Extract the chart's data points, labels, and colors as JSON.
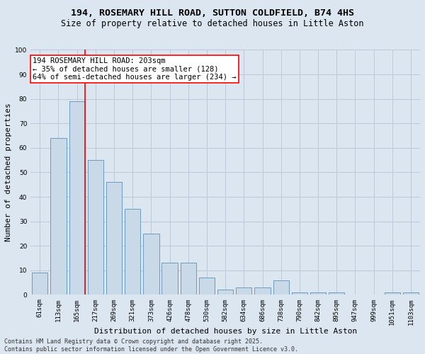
{
  "title1": "194, ROSEMARY HILL ROAD, SUTTON COLDFIELD, B74 4HS",
  "title2": "Size of property relative to detached houses in Little Aston",
  "xlabel": "Distribution of detached houses by size in Little Aston",
  "ylabel": "Number of detached properties",
  "categories": [
    "61sqm",
    "113sqm",
    "165sqm",
    "217sqm",
    "269sqm",
    "321sqm",
    "373sqm",
    "426sqm",
    "478sqm",
    "530sqm",
    "582sqm",
    "634sqm",
    "686sqm",
    "738sqm",
    "790sqm",
    "842sqm",
    "895sqm",
    "947sqm",
    "999sqm",
    "1051sqm",
    "1103sqm"
  ],
  "values": [
    9,
    64,
    79,
    55,
    46,
    35,
    25,
    13,
    13,
    7,
    2,
    3,
    3,
    6,
    1,
    1,
    1,
    0,
    0,
    1,
    1
  ],
  "bar_color": "#c9d9e8",
  "bar_edge_color": "#6a9bbf",
  "vline_color": "red",
  "annotation_text": "194 ROSEMARY HILL ROAD: 203sqm\n← 35% of detached houses are smaller (128)\n64% of semi-detached houses are larger (234) →",
  "annotation_box_color": "white",
  "annotation_box_edge_color": "red",
  "ylim": [
    0,
    100
  ],
  "yticks": [
    0,
    10,
    20,
    30,
    40,
    50,
    60,
    70,
    80,
    90,
    100
  ],
  "grid_color": "#c0c8d8",
  "background_color": "#dce6f0",
  "footer": "Contains HM Land Registry data © Crown copyright and database right 2025.\nContains public sector information licensed under the Open Government Licence v3.0.",
  "title_fontsize": 9.5,
  "subtitle_fontsize": 8.5,
  "xlabel_fontsize": 8,
  "ylabel_fontsize": 8,
  "tick_fontsize": 6.5,
  "annotation_fontsize": 7.5,
  "footer_fontsize": 6
}
